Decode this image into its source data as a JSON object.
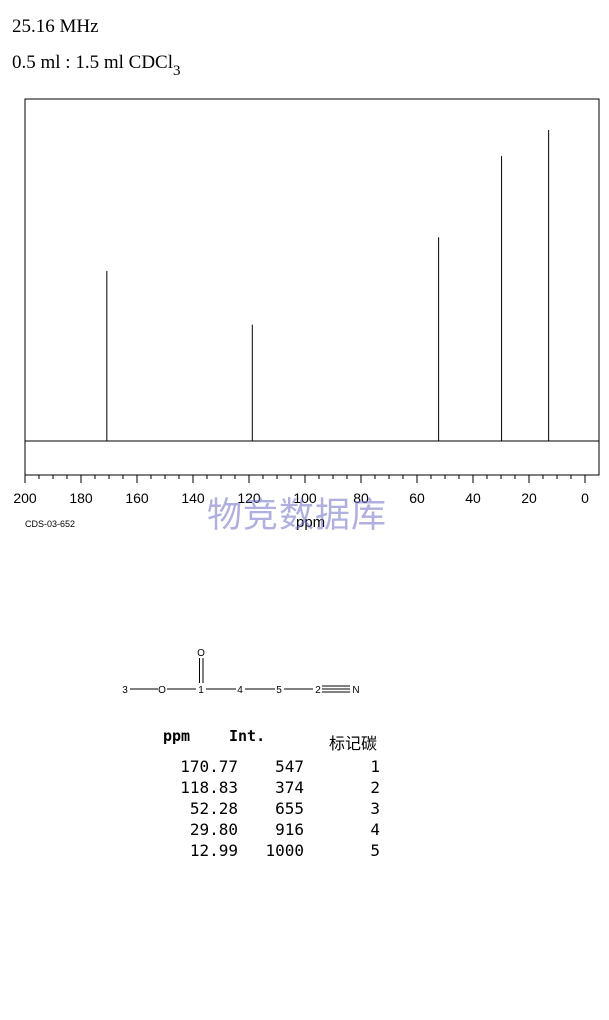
{
  "header": {
    "frequency": "25.16 MHz",
    "solvent_main": "0.5 ml : 1.5 ml CDCl",
    "solvent_sub": "3"
  },
  "chart_data": {
    "type": "line",
    "title": "",
    "xlabel": "ppm",
    "ylabel": "",
    "xlim": [
      200,
      0
    ],
    "x_reversed": true,
    "xticks": [
      "200",
      "180",
      "160",
      "140",
      "120",
      "100",
      "80",
      "60",
      "40",
      "20",
      "0"
    ],
    "ylim": [
      0,
      1000
    ],
    "grid": false,
    "peaks": [
      {
        "ppm": 170.77,
        "intensity": 547
      },
      {
        "ppm": 118.83,
        "intensity": 374
      },
      {
        "ppm": 52.28,
        "intensity": 655
      },
      {
        "ppm": 29.8,
        "intensity": 916
      },
      {
        "ppm": 12.99,
        "intensity": 1000
      }
    ],
    "code": "CDS-03-652"
  },
  "watermark": "物竞数据库",
  "molecule": {
    "atoms": {
      "carbonyl_o": "O",
      "methyl": "3",
      "ester_o": "O",
      "c1": "1",
      "c4": "4",
      "c5": "5",
      "c2": "2",
      "nitrile_n": "N"
    }
  },
  "table": {
    "headers": {
      "ppm": "ppm",
      "int": "Int.",
      "carbon": "标记碳"
    },
    "rows": [
      {
        "ppm": "170.77",
        "int": "547",
        "carbon": "1"
      },
      {
        "ppm": "118.83",
        "int": "374",
        "carbon": "2"
      },
      {
        "ppm": "52.28",
        "int": "655",
        "carbon": "3"
      },
      {
        "ppm": "29.80",
        "int": "916",
        "carbon": "4"
      },
      {
        "ppm": "12.99",
        "int": "1000",
        "carbon": "5"
      }
    ]
  }
}
